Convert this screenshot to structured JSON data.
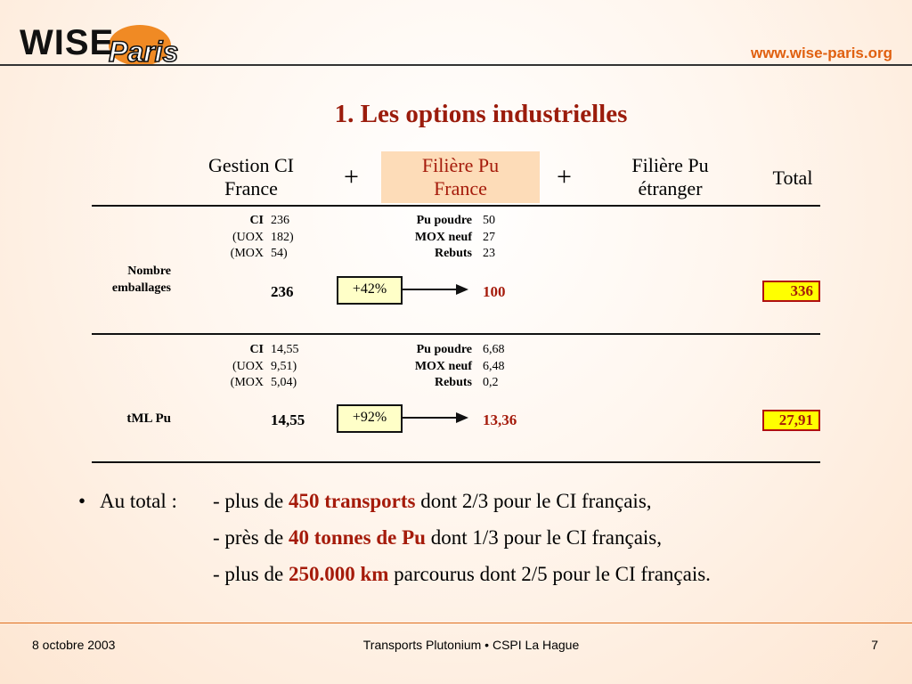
{
  "header": {
    "logo_main": "WISE",
    "logo_sub": "Paris",
    "url": "www.wise-paris.org"
  },
  "title": "1. Les options industrielles",
  "columns": {
    "col1_line1": "Gestion CI",
    "col1_line2": "France",
    "plus1": "+",
    "col2_line1": "Filière Pu",
    "col2_line2": "France",
    "plus2": "+",
    "col3_line1": "Filière Pu",
    "col3_line2": "étranger",
    "col4": "Total"
  },
  "row1": {
    "label_line1": "Nombre",
    "label_line2": "emballages",
    "ci_label": "CI",
    "ci_value": "236",
    "uox_label": "(UOX",
    "uox_value": "182)",
    "mox_label": "(MOX",
    "mox_value": "54)",
    "ci_total": "236",
    "pct": "+42%",
    "pu_poudre_label": "Pu poudre",
    "pu_poudre_value": "50",
    "mox_neuf_label": "MOX neuf",
    "mox_neuf_value": "27",
    "rebuts_label": "Rebuts",
    "rebuts_value": "23",
    "pu_total": "100",
    "total": "336"
  },
  "row2": {
    "label": "tML Pu",
    "ci_label": "CI",
    "ci_value": "14,55",
    "uox_label": "(UOX",
    "uox_value": "9,51)",
    "mox_label": "(MOX",
    "mox_value": "5,04)",
    "ci_total": "14,55",
    "pct": "+92%",
    "pu_poudre_label": "Pu poudre",
    "pu_poudre_value": "6,68",
    "mox_neuf_label": "MOX neuf",
    "mox_neuf_value": "6,48",
    "rebuts_label": "Rebuts",
    "rebuts_value": "0,2",
    "pu_total": "13,36",
    "total": "27,91"
  },
  "summary": {
    "bullet": "•",
    "label": "Au total :",
    "line1_pre": "- plus de ",
    "line1_hl": "450 transports",
    "line1_post": " dont 2/3 pour le CI français,",
    "line2_pre": "- près de ",
    "line2_hl": "40 tonnes de Pu",
    "line2_post": " dont 1/3 pour le CI français,",
    "line3_pre": "- plus de ",
    "line3_hl": "250.000 km",
    "line3_post": " parcourus dont 2/5 pour le CI français."
  },
  "footer": {
    "date": "8 octobre 2003",
    "center": "Transports Plutonium • CSPI La Hague",
    "page": "7"
  },
  "colors": {
    "accent_orange": "#e06010",
    "title_red": "#9b1c0c",
    "highlight_yellow": "#ffff00",
    "column_highlight": "#fddcb8"
  }
}
